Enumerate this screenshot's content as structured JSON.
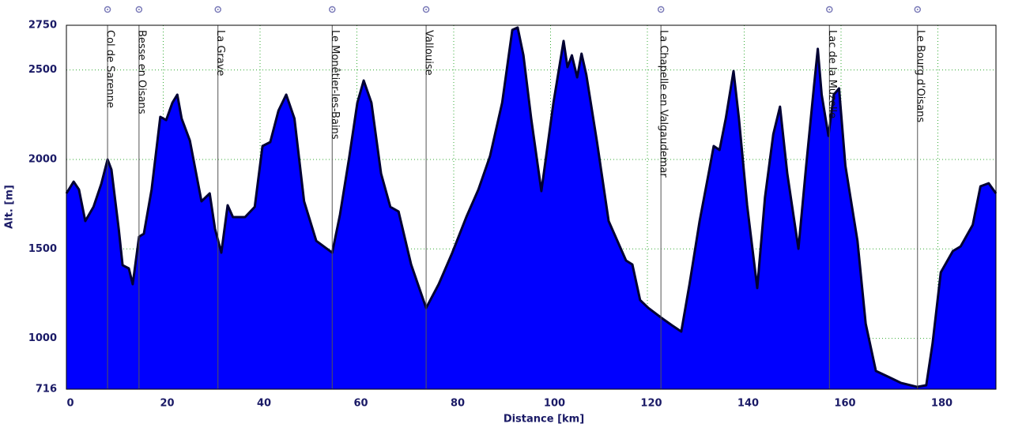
{
  "chart_data": {
    "type": "area",
    "x_label": "Distance [km]",
    "y_label": "Alt. [m]",
    "x": [
      0,
      1.5,
      2.6,
      3.9,
      5.6,
      7.2,
      8.5,
      9.3,
      10.8,
      11.6,
      12.9,
      13.7,
      15.0,
      16.0,
      17.6,
      19.4,
      20.6,
      21.9,
      22.9,
      23.8,
      25.5,
      27.9,
      29.6,
      30.7,
      32.0,
      33.3,
      34.4,
      36.9,
      38.9,
      40.5,
      42.1,
      43.8,
      45.4,
      47.1,
      49.1,
      51.6,
      54.9,
      56.5,
      58.4,
      60.1,
      61.4,
      63.0,
      65.0,
      66.9,
      68.6,
      71.2,
      74.3,
      76.9,
      79.7,
      82.6,
      85.1,
      87.5,
      90.0,
      92.1,
      93.2,
      94.4,
      96.0,
      98.1,
      100.6,
      102.7,
      103.5,
      104.4,
      105.5,
      106.4,
      107.4,
      109.6,
      112.0,
      115.6,
      116.9,
      118.5,
      120.2,
      122.8,
      125.1,
      127.0,
      128.7,
      130.8,
      132.8,
      133.7,
      134.9,
      136.2,
      137.8,
      138.9,
      140.6,
      142.7,
      144.3,
      146.0,
      147.4,
      148.9,
      151.2,
      152.8,
      154.4,
      155.2,
      156.0,
      157.4,
      158.5,
      159.6,
      160.9,
      163.4,
      165.1,
      167.2,
      170.0,
      172.4,
      175.7,
      177.6,
      178.9,
      180.6,
      183.1,
      184.7,
      187.2,
      188.8,
      190.5,
      192.0
    ],
    "values": [
      1810,
      1876,
      1832,
      1656,
      1735,
      1863,
      2000,
      1943,
      1612,
      1409,
      1391,
      1303,
      1568,
      1585,
      1832,
      2238,
      2220,
      2317,
      2362,
      2229,
      2106,
      1766,
      1810,
      1612,
      1479,
      1744,
      1678,
      1678,
      1735,
      2075,
      2097,
      2273,
      2362,
      2229,
      1766,
      1545,
      1479,
      1691,
      2009,
      2317,
      2441,
      2317,
      1921,
      1735,
      1709,
      1413,
      1170,
      1303,
      1479,
      1678,
      1832,
      2018,
      2317,
      2724,
      2737,
      2582,
      2229,
      1823,
      2317,
      2662,
      2516,
      2582,
      2459,
      2591,
      2472,
      2097,
      1656,
      1435,
      1413,
      1214,
      1170,
      1117,
      1073,
      1038,
      1303,
      1656,
      1943,
      2075,
      2053,
      2229,
      2494,
      2229,
      1744,
      1281,
      1788,
      2141,
      2295,
      1921,
      1501,
      1965,
      2406,
      2618,
      2362,
      2132,
      2362,
      2397,
      1965,
      1545,
      1082,
      818,
      782,
      751,
      729,
      738,
      972,
      1369,
      1488,
      1514,
      1634,
      1850,
      1867,
      1810
    ],
    "color": "#0000ff",
    "line_color": "#000033",
    "xlim": [
      0,
      192
    ],
    "ylim": [
      716,
      2750
    ],
    "xticks": [
      0,
      20,
      40,
      60,
      80,
      100,
      120,
      140,
      160,
      180
    ],
    "yticks": [
      716,
      1000,
      1500,
      2000,
      2500,
      2750
    ],
    "grid": true,
    "waypoints": [
      {
        "label": "Col de Sarenne",
        "km": 8.5
      },
      {
        "label": "Besse en Oisans",
        "km": 15.0
      },
      {
        "label": "La Grave",
        "km": 31.3
      },
      {
        "label": "Le Monêtier-les-Bains",
        "km": 54.9
      },
      {
        "label": "Vallouise",
        "km": 74.3
      },
      {
        "label": "La Chapelle en Valgaudemar",
        "km": 122.8
      },
      {
        "label": "Lac de la Muzelle",
        "km": 157.6
      },
      {
        "label": "Le Bourg d'Oisans",
        "km": 175.8
      }
    ]
  }
}
